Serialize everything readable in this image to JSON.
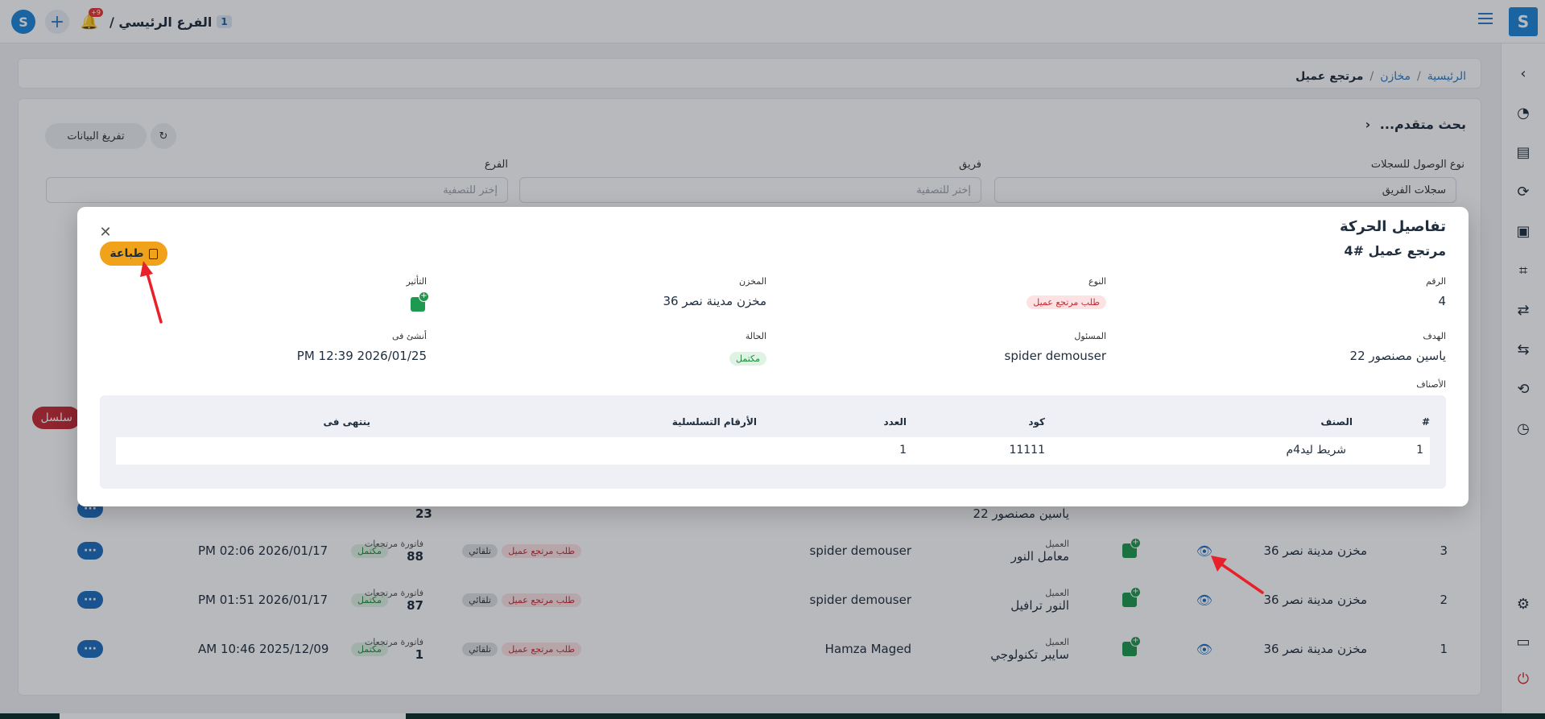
{
  "topbar": {
    "notifications_count": "+9",
    "branch_name": "الفرع الرئيسي /",
    "branch_number": "1"
  },
  "breadcrumb": {
    "home": "الرئيسية",
    "stores": "مخازن",
    "current": "مرتجع عميل"
  },
  "filters": {
    "title": "بحث متقدم...",
    "clear_button": "تفريغ البيانات",
    "access_type_label": "نوع الوصول للسجلات",
    "access_type_value": "سجلات الفريق",
    "team_label": "فريق",
    "team_placeholder": "إختر للتصفية",
    "branch_label": "الفرع",
    "branch_placeholder": "إختر للتصفية",
    "red_pill_label": "سلسل"
  },
  "table_rows": [
    {
      "num": "3",
      "store": "مخزن مدينة نصر 36",
      "client_label": "العميل",
      "client": "معامل النور",
      "responsible": "spider demouser",
      "type_badge": "طلب مرتجع عميل",
      "mode_badge": "تلقائي",
      "status_badge": "مكتمل",
      "invoice_label": "فاتورة مرتجعات",
      "invoice": "88",
      "date": "PM 02:06 2026/01/17",
      "more": "···"
    },
    {
      "num": "2",
      "store": "مخزن مدينة نصر 36",
      "client_label": "العميل",
      "client": "النور ترافيل",
      "responsible": "spider demouser",
      "type_badge": "طلب مرتجع عميل",
      "mode_badge": "تلقائي",
      "status_badge": "مكتمل",
      "invoice_label": "فاتورة مرتجعات",
      "invoice": "87",
      "date": "PM 01:51 2026/01/17",
      "more": "···"
    },
    {
      "num": "1",
      "store": "مخزن مدينة نصر 36",
      "client_label": "العميل",
      "client": "سايبر تكنولوجي",
      "responsible": "Hamza Maged",
      "type_badge": "طلب مرتجع عميل",
      "mode_badge": "تلقائي",
      "status_badge": "مكتمل",
      "invoice_label": "فاتورة مرتجعات",
      "invoice": "1",
      "date": "AM 10:46 2025/12/09",
      "more": "···"
    }
  ],
  "partial_row": {
    "client": "ياسين مصنصور 22",
    "invoice": "23"
  },
  "modal": {
    "title": "تفاصيل الحركة",
    "subtitle": "مرتجع عميل #4",
    "print_button": "طباعة",
    "fields": {
      "number_label": "الرقم",
      "number_value": "4",
      "type_label": "النوع",
      "type_value": "طلب مرتجع عميل",
      "store_label": "المخزن",
      "store_value": "مخزن مدينة نصر 36",
      "effect_label": "التأثير",
      "target_label": "الهدف",
      "target_value": "ياسين مصنصور 22",
      "responsible_label": "المسئول",
      "responsible_value": "spider demouser",
      "status_label": "الحالة",
      "status_value": "مكتمل",
      "created_label": "أنشئ فى",
      "created_value": "PM 12:39 2026/01/25"
    },
    "items_label": "الأصناف",
    "items_columns": {
      "num": "#",
      "item": "الصنف",
      "code": "كود",
      "qty": "العدد",
      "serials": "الأرقام التسلسلية",
      "expires": "ينتهى فى"
    },
    "items": [
      {
        "num": "1",
        "item": "شريط ليد4م",
        "code": "11111",
        "qty": "1",
        "serials": "",
        "expires": ""
      }
    ]
  },
  "colors": {
    "primary": "#1e86d9",
    "print_button": "#f0a31a",
    "badge_red": "#c62a35",
    "badge_green": "#1f8a3b",
    "arrow": "#e8202a"
  }
}
